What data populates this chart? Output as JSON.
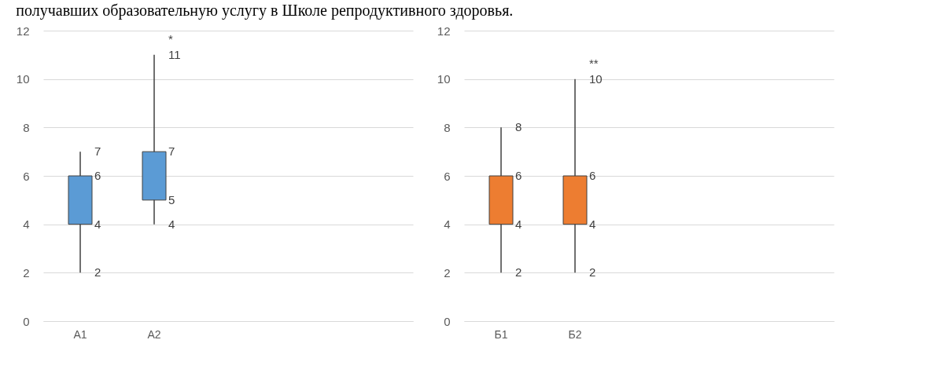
{
  "chart_data": [
    {
      "type": "candlestick",
      "title": "получавших образовательную услугу в Школе репродуктивного здоровья.",
      "categories": [
        "А1",
        "А2",
        null,
        null,
        null
      ],
      "series": [
        {
          "color": "#5b9bd5",
          "ohlc": [
            [
              4,
              7,
              2,
              6
            ],
            [
              5,
              11,
              4,
              7
            ],
            null,
            null,
            null
          ]
        }
      ],
      "ylim": [
        0,
        12
      ],
      "yticks": [
        0,
        2,
        4,
        6,
        8,
        10,
        12
      ],
      "grid": "y",
      "annotations": [
        {
          "text": "7",
          "x": "А1",
          "y": 7
        },
        {
          "text": "6",
          "x": "А1",
          "y": 6
        },
        {
          "text": "4",
          "x": "А1",
          "y": 4
        },
        {
          "text": "2",
          "x": "А1",
          "y": 2
        },
        {
          "text": "11",
          "x": "А2",
          "y": 11
        },
        {
          "text": "7",
          "x": "А2",
          "y": 7
        },
        {
          "text": "5",
          "x": "А2",
          "y": 5
        },
        {
          "text": "4",
          "x": "А2",
          "y": 4
        },
        {
          "text": "*",
          "x": "А2",
          "y": 11
        }
      ]
    },
    {
      "type": "candlestick",
      "categories": [
        "Б1",
        "Б2",
        null,
        null,
        null
      ],
      "series": [
        {
          "color": "#ed7d31",
          "ohlc": [
            [
              4,
              8,
              2,
              6
            ],
            [
              4,
              10,
              2,
              6
            ],
            null,
            null,
            null
          ]
        }
      ],
      "ylim": [
        0,
        12
      ],
      "yticks": [
        0,
        2,
        4,
        6,
        8,
        10,
        12
      ],
      "grid": "y",
      "annotations": [
        {
          "text": "8",
          "x": "Б1",
          "y": 8
        },
        {
          "text": "6",
          "x": "Б1",
          "y": 6
        },
        {
          "text": "4",
          "x": "Б1",
          "y": 4
        },
        {
          "text": "2",
          "x": "Б1",
          "y": 2
        },
        {
          "text": "10",
          "x": "Б2",
          "y": 10
        },
        {
          "text": "6",
          "x": "Б2",
          "y": 6
        },
        {
          "text": "4",
          "x": "Б2",
          "y": 4
        },
        {
          "text": "2",
          "x": "Б2",
          "y": 2
        },
        {
          "text": "**",
          "x": "Б2",
          "y": 10
        }
      ]
    }
  ]
}
